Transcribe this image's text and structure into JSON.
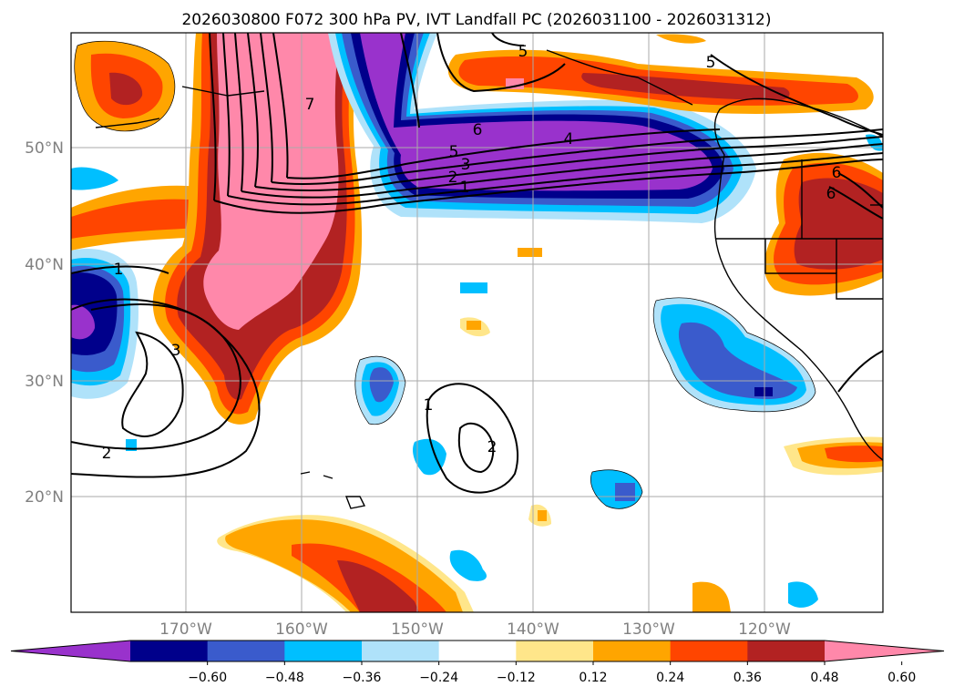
{
  "title": "2026030800 F072 300 hPa PV, IVT Landfall PC (2026031100 - 2026031312)",
  "map": {
    "lat_labels": [
      "50°N",
      "40°N",
      "30°N",
      "20°N"
    ],
    "lon_labels": [
      "170°W",
      "160°W",
      "150°W",
      "140°W",
      "130°W",
      "120°W"
    ],
    "contour_labels": [
      "5",
      "5",
      "6",
      "4",
      "5",
      "3",
      "2",
      "1",
      "7",
      "6",
      "6",
      "1",
      "3",
      "2",
      "1",
      "2"
    ]
  },
  "colorbar": {
    "ticks": [
      "−0.60",
      "−0.48",
      "−0.36",
      "−0.24",
      "−0.12",
      "0.12",
      "0.24",
      "0.36",
      "0.48",
      "0.60"
    ],
    "colors": [
      "#9932cc",
      "#00008b",
      "#3a5bcc",
      "#00bfff",
      "#afe2fa",
      "#ffffff",
      "#ffe68a",
      "#ffa500",
      "#ff4500",
      "#b22222",
      "#ff88aa"
    ]
  },
  "chart_data": {
    "type": "heatmap",
    "title": "2026030800 F072 300 hPa PV, IVT Landfall PC (2026031100 - 2026031312)",
    "x_ticks": [
      "170°W",
      "160°W",
      "150°W",
      "140°W",
      "130°W",
      "120°W"
    ],
    "y_ticks": [
      "50°N",
      "40°N",
      "30°N",
      "20°N"
    ],
    "colorbar_levels": [
      -0.6,
      -0.48,
      -0.36,
      -0.24,
      -0.12,
      0.12,
      0.24,
      0.36,
      0.48,
      0.6
    ],
    "colorbar_extend": "both",
    "contour_labels": [
      1,
      2,
      3,
      4,
      5,
      6,
      7
    ]
  }
}
